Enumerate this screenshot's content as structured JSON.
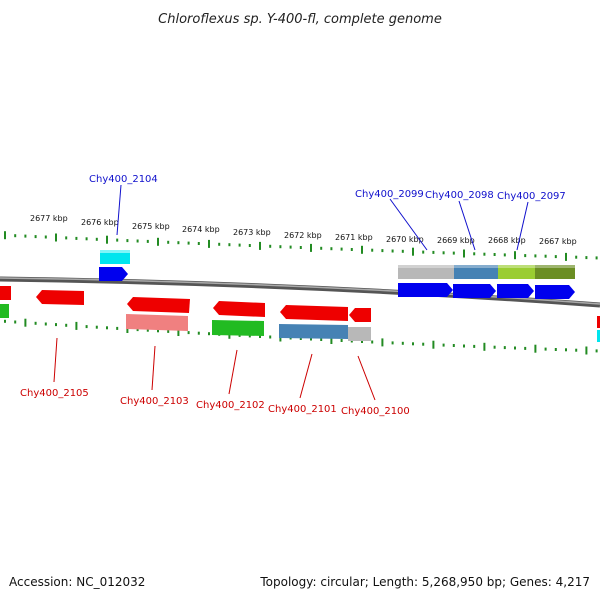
{
  "title": "Chloroflexus sp. Y-400-fl, complete genome",
  "footer": {
    "accession": "Accession: NC_012032",
    "summary": "Topology: circular; Length: 5,268,950 bp; Genes: 4,217"
  },
  "scale_labels": [
    "2677 kbp",
    "2676 kbp",
    "2675 kbp",
    "2674 kbp",
    "2673 kbp",
    "2672 kbp",
    "2671 kbp",
    "2670 kbp",
    "2669 kbp",
    "2668 kbp",
    "2667 kbp"
  ],
  "gene_labels_top": [
    "Chy400_2104",
    "Chy400_2099",
    "Chy400_2098",
    "Chy400_2097"
  ],
  "gene_labels_bottom": [
    "Chy400_2105",
    "Chy400_2103",
    "Chy400_2102",
    "Chy400_2101",
    "Chy400_2100"
  ],
  "colors": {
    "cds_forward": "#0000ee",
    "cds_reverse": "#ee0000",
    "cog_cyan": "#00e5ee",
    "cog_gray": "#b0b0b0",
    "cog_steelblue": "#4682b4",
    "cog_green": "#22bb22",
    "cog_olive": "#6b8e23",
    "cog_pink": "#f08080",
    "ruler_tick": "#228b22",
    "backbone": "#777777"
  }
}
